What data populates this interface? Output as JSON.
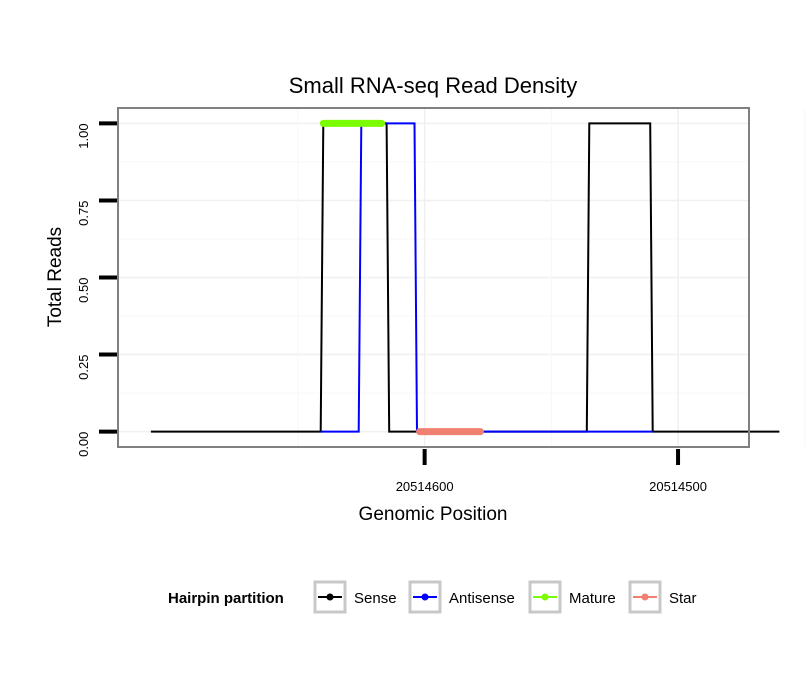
{
  "chart_data": {
    "type": "line",
    "title": "Small RNA-seq Read Density",
    "xlabel": "Genomic Position",
    "ylabel": "Total Reads",
    "x_reversed": true,
    "xlim": [
      20514721,
      20514472
    ],
    "ylim": [
      -0.05,
      1.05
    ],
    "x_ticks": [
      {
        "value": 20514600,
        "label": "20514600"
      },
      {
        "value": 20514500,
        "label": "20514500"
      }
    ],
    "y_ticks": [
      {
        "value": 0.0,
        "label": "0.00"
      },
      {
        "value": 0.25,
        "label": "0.25"
      },
      {
        "value": 0.5,
        "label": "0.50"
      },
      {
        "value": 0.75,
        "label": "0.75"
      },
      {
        "value": 1.0,
        "label": "1.00"
      }
    ],
    "grid": true,
    "legend": {
      "title": "Hairpin partition",
      "position": "bottom",
      "entries": [
        "Sense",
        "Antisense",
        "Mature",
        "Star"
      ]
    },
    "series": [
      {
        "name": "Sense",
        "color": "#000000",
        "x": [
          20514708,
          20514641,
          20514640,
          20514615,
          20514614,
          20514536,
          20514535,
          20514511,
          20514510,
          20514460
        ],
        "y": [
          0,
          0,
          1,
          1,
          0,
          0,
          1,
          1,
          0,
          0
        ]
      },
      {
        "name": "Antisense",
        "color": "#0000ff",
        "x": [
          20514641,
          20514626,
          20514625,
          20514604,
          20514603,
          20514536,
          20514535,
          20514511,
          20514510
        ],
        "y": [
          0,
          0,
          1,
          1,
          0,
          0,
          0,
          0,
          0
        ]
      },
      {
        "name": "Mature",
        "color": "#7cfc00",
        "x": [
          20514640,
          20514617
        ],
        "y": [
          1,
          1
        ]
      },
      {
        "name": "Star",
        "color": "#f08070",
        "x": [
          20514602,
          20514578
        ],
        "y": [
          0,
          0
        ]
      }
    ]
  }
}
